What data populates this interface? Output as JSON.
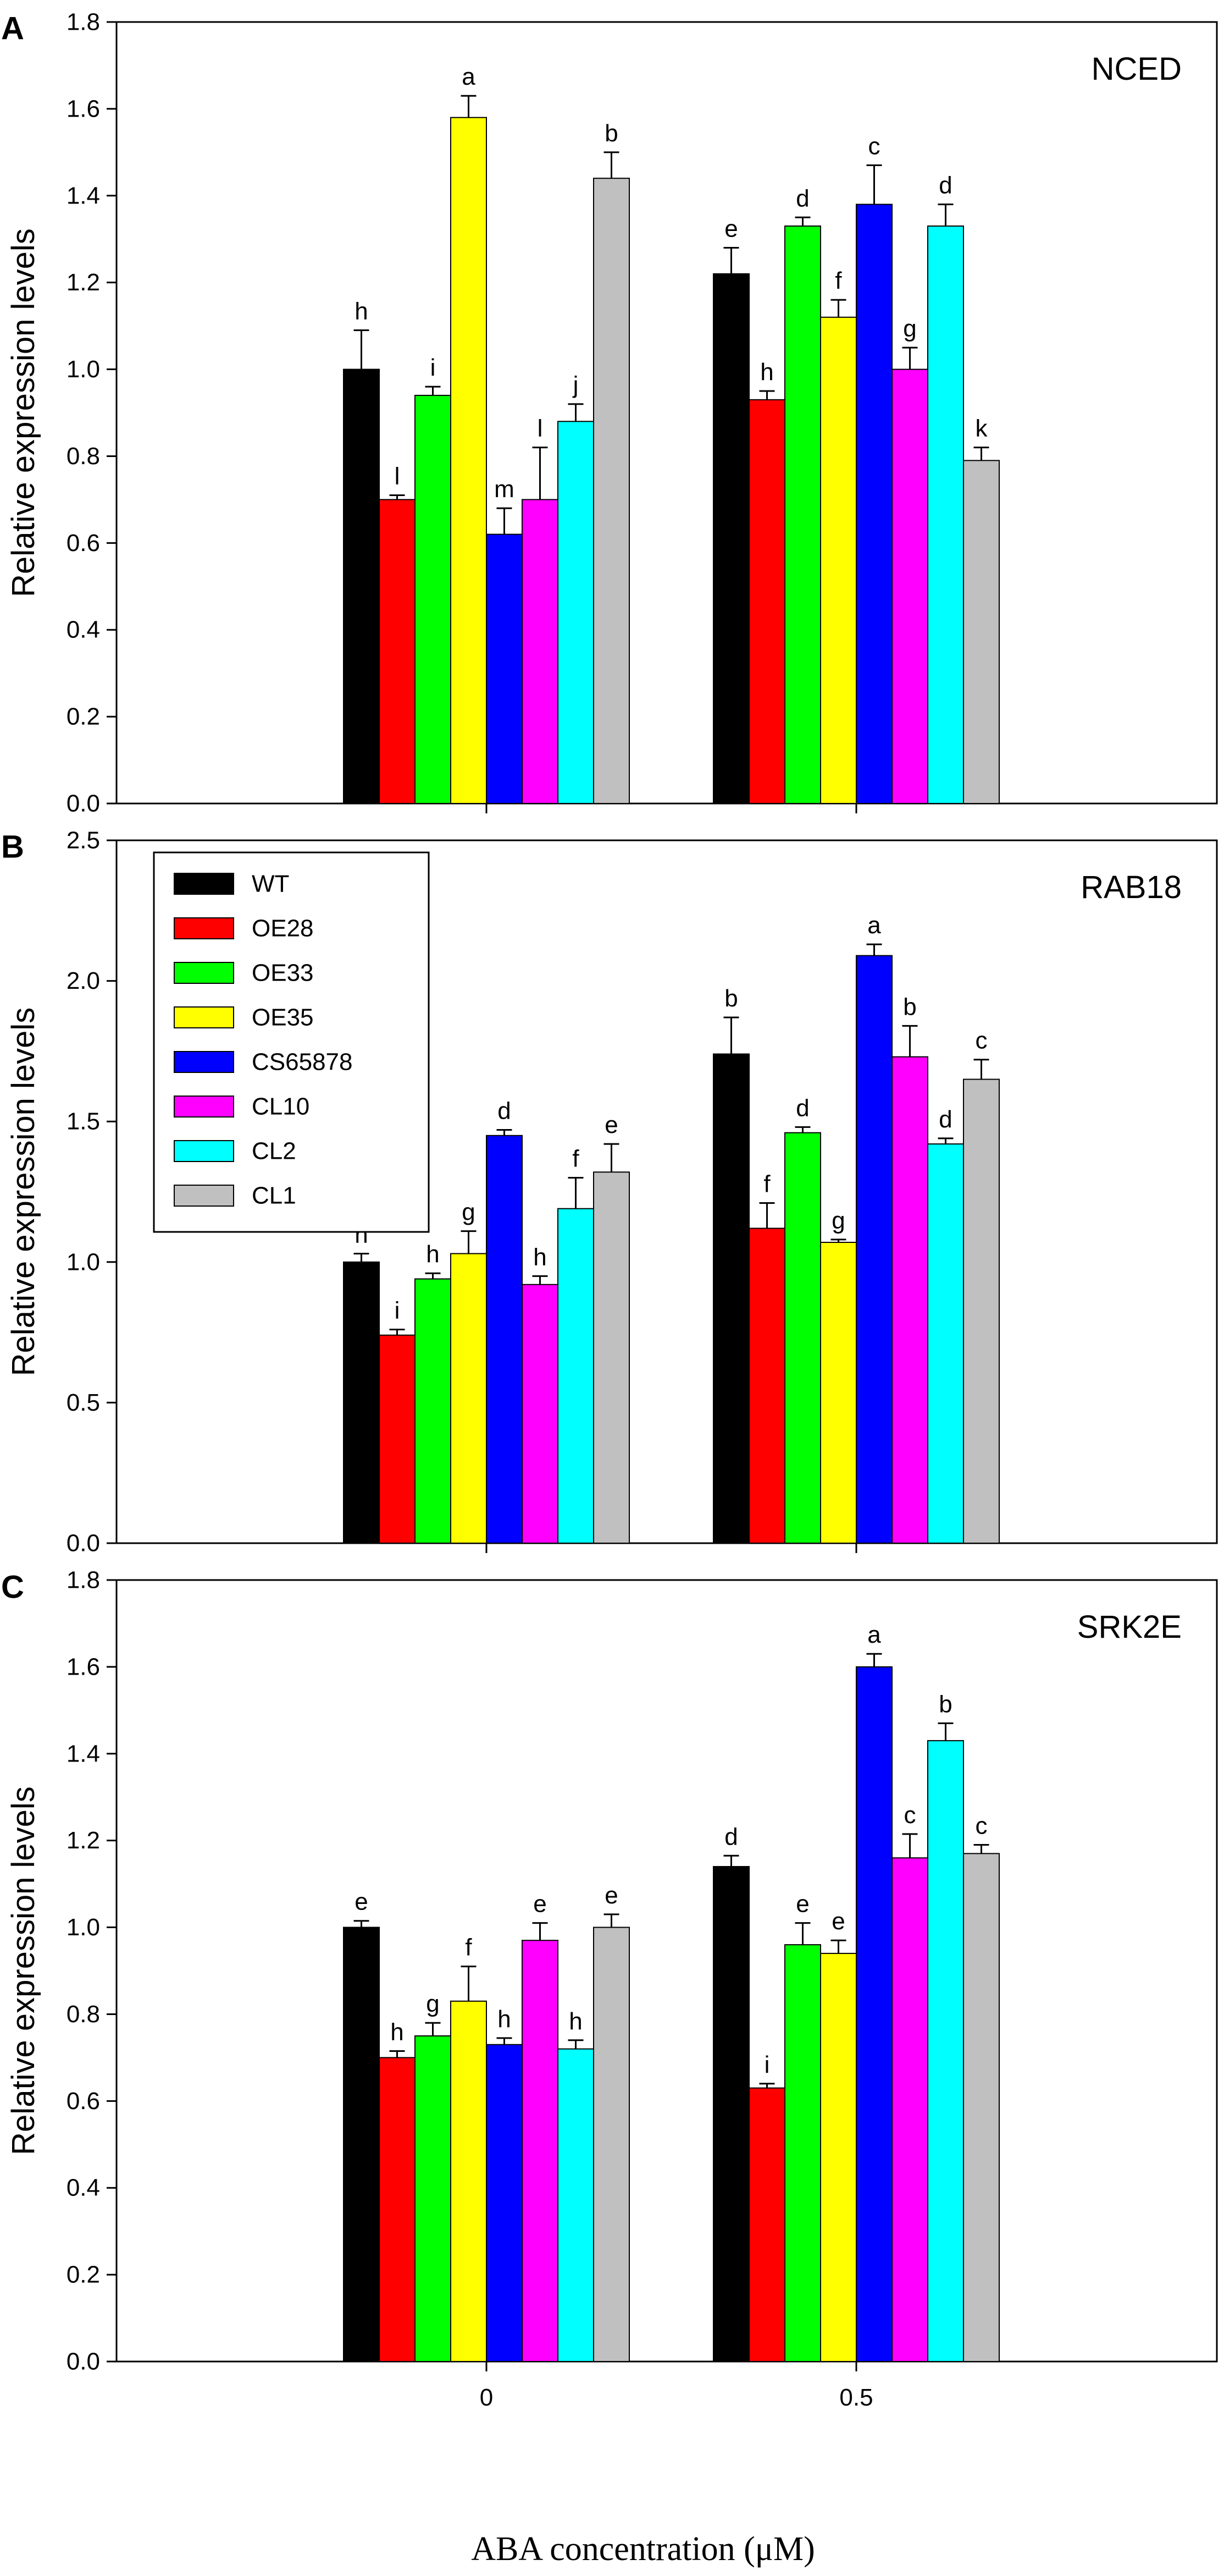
{
  "chart_data": [
    {
      "type": "bar",
      "panel": "A",
      "title": "NCED",
      "ylabel": "Relative expression levels",
      "ylim": [
        0,
        1.8
      ],
      "yticks": [
        "0.0",
        "0.2",
        "0.4",
        "0.6",
        "0.8",
        "1.0",
        "1.2",
        "1.4",
        "1.6",
        "1.8"
      ],
      "categories": [
        "0",
        "0.5"
      ],
      "series": [
        {
          "name": "WT",
          "values": [
            1.0,
            1.22
          ],
          "errors": [
            0.09,
            0.06
          ],
          "labels": [
            "h",
            "e"
          ]
        },
        {
          "name": "OE28",
          "values": [
            0.7,
            0.93
          ],
          "errors": [
            0.01,
            0.02
          ],
          "labels": [
            "l",
            "h"
          ]
        },
        {
          "name": "OE33",
          "values": [
            0.94,
            1.33
          ],
          "errors": [
            0.02,
            0.02
          ],
          "labels": [
            "i",
            "d"
          ]
        },
        {
          "name": "OE35",
          "values": [
            1.58,
            1.12
          ],
          "errors": [
            0.05,
            0.04
          ],
          "labels": [
            "a",
            "f"
          ]
        },
        {
          "name": "CS65878",
          "values": [
            0.62,
            1.38
          ],
          "errors": [
            0.06,
            0.09
          ],
          "labels": [
            "m",
            "c"
          ]
        },
        {
          "name": "CL10",
          "values": [
            0.7,
            1.0
          ],
          "errors": [
            0.12,
            0.05
          ],
          "labels": [
            "l",
            "g"
          ]
        },
        {
          "name": "CL2",
          "values": [
            0.88,
            1.33
          ],
          "errors": [
            0.04,
            0.05
          ],
          "labels": [
            "j",
            "d"
          ]
        },
        {
          "name": "CL1",
          "values": [
            1.44,
            0.79
          ],
          "errors": [
            0.06,
            0.03
          ],
          "labels": [
            "b",
            "k"
          ]
        }
      ]
    },
    {
      "type": "bar",
      "panel": "B",
      "title": "RAB18",
      "ylabel": "Relative expression levels",
      "ylim": [
        0,
        2.5
      ],
      "yticks": [
        "0.0",
        "0.5",
        "1.0",
        "1.5",
        "2.0",
        "2.5"
      ],
      "categories": [
        "0",
        "0.5"
      ],
      "legend": "top-left",
      "series": [
        {
          "name": "WT",
          "values": [
            1.0,
            1.74
          ],
          "errors": [
            0.03,
            0.13
          ],
          "labels": [
            "h",
            "b"
          ]
        },
        {
          "name": "OE28",
          "values": [
            0.74,
            1.12
          ],
          "errors": [
            0.02,
            0.09
          ],
          "labels": [
            "i",
            "f"
          ]
        },
        {
          "name": "OE33",
          "values": [
            0.94,
            1.46
          ],
          "errors": [
            0.02,
            0.02
          ],
          "labels": [
            "h",
            "d"
          ]
        },
        {
          "name": "OE35",
          "values": [
            1.03,
            1.07
          ],
          "errors": [
            0.08,
            0.01
          ],
          "labels": [
            "g",
            "g"
          ]
        },
        {
          "name": "CS65878",
          "values": [
            1.45,
            2.09
          ],
          "errors": [
            0.02,
            0.04
          ],
          "labels": [
            "d",
            "a"
          ]
        },
        {
          "name": "CL10",
          "values": [
            0.92,
            1.73
          ],
          "errors": [
            0.03,
            0.11
          ],
          "labels": [
            "h",
            "b"
          ]
        },
        {
          "name": "CL2",
          "values": [
            1.19,
            1.42
          ],
          "errors": [
            0.11,
            0.02
          ],
          "labels": [
            "f",
            "d"
          ]
        },
        {
          "name": "CL1",
          "values": [
            1.32,
            1.65
          ],
          "errors": [
            0.1,
            0.07
          ],
          "labels": [
            "e",
            "c"
          ]
        }
      ]
    },
    {
      "type": "bar",
      "panel": "C",
      "title": "SRK2E",
      "ylabel": "Relative expression levels",
      "xlabel": "ABA concentration (μM)",
      "ylim": [
        0,
        1.8
      ],
      "yticks": [
        "0.0",
        "0.2",
        "0.4",
        "0.6",
        "0.8",
        "1.0",
        "1.2",
        "1.4",
        "1.6",
        "1.8"
      ],
      "categories": [
        "0",
        "0.5"
      ],
      "series": [
        {
          "name": "WT",
          "values": [
            1.0,
            1.14
          ],
          "errors": [
            0.015,
            0.025
          ],
          "labels": [
            "e",
            "d"
          ]
        },
        {
          "name": "OE28",
          "values": [
            0.7,
            0.63
          ],
          "errors": [
            0.015,
            0.01
          ],
          "labels": [
            "h",
            "i"
          ]
        },
        {
          "name": "OE33",
          "values": [
            0.75,
            0.96
          ],
          "errors": [
            0.03,
            0.05
          ],
          "labels": [
            "g",
            "e"
          ]
        },
        {
          "name": "OE35",
          "values": [
            0.83,
            0.94
          ],
          "errors": [
            0.08,
            0.03
          ],
          "labels": [
            "f",
            "e"
          ]
        },
        {
          "name": "CS65878",
          "values": [
            0.73,
            1.6
          ],
          "errors": [
            0.015,
            0.03
          ],
          "labels": [
            "h",
            "a"
          ]
        },
        {
          "name": "CL10",
          "values": [
            0.97,
            1.16
          ],
          "errors": [
            0.04,
            0.055
          ],
          "labels": [
            "e",
            "c"
          ]
        },
        {
          "name": "CL2",
          "values": [
            0.72,
            1.43
          ],
          "errors": [
            0.02,
            0.04
          ],
          "labels": [
            "h",
            "b"
          ]
        },
        {
          "name": "CL1",
          "values": [
            1.0,
            1.17
          ],
          "errors": [
            0.03,
            0.02
          ],
          "labels": [
            "e",
            "c"
          ]
        }
      ]
    }
  ],
  "colors": {
    "WT": "#000000",
    "OE28": "#ff0000",
    "OE33": "#00ff00",
    "OE35": "#ffff00",
    "CS65878": "#0000ff",
    "CL10": "#ff00ff",
    "CL2": "#00ffff",
    "CL1": "#c0c0c0"
  }
}
